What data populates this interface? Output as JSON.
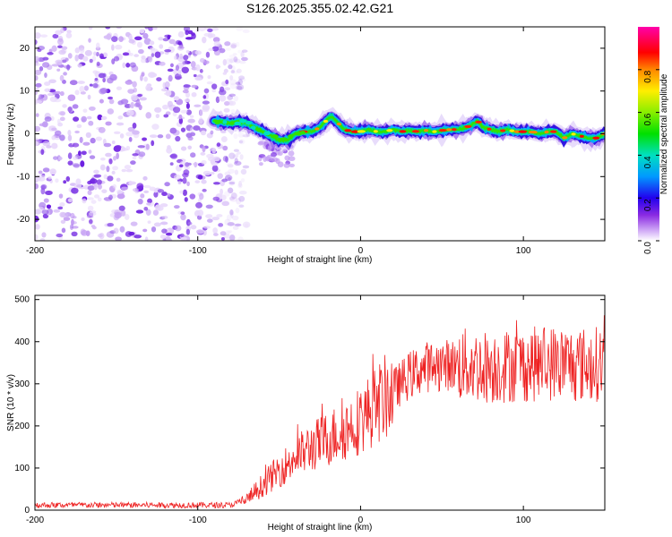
{
  "title": "S126.2025.355.02.42.G21",
  "chart_data": [
    {
      "type": "heatmap",
      "name": "spectrogram",
      "xlabel": "Height of straight line (km)",
      "ylabel": "Frequency (Hz)",
      "xlim": [
        -200,
        150
      ],
      "ylim": [
        -25,
        25
      ],
      "xticks": [
        -200,
        -100,
        0,
        100
      ],
      "yticks": [
        -20,
        -10,
        0,
        10,
        20
      ],
      "noise_region_x": [
        -200,
        -78
      ],
      "ridge": {
        "x": [
          -90,
          -80,
          -75,
          -70,
          -65,
          -60,
          -55,
          -50,
          -45,
          -40,
          -35,
          -30,
          -25,
          -20,
          -18,
          -15,
          -10,
          -5,
          0,
          5,
          10,
          15,
          20,
          25,
          30,
          35,
          40,
          45,
          50,
          55,
          60,
          65,
          70,
          72,
          75,
          80,
          85,
          90,
          95,
          100,
          105,
          110,
          115,
          120,
          125,
          130,
          135,
          140,
          145,
          150
        ],
        "y": [
          3,
          2.5,
          2.8,
          2.5,
          1.5,
          0.5,
          -0.5,
          -1.5,
          -1.5,
          0,
          0.5,
          0.5,
          1.5,
          3.5,
          4,
          3,
          1,
          0.5,
          0.5,
          1,
          0.5,
          0.5,
          1,
          0.5,
          0.8,
          0.5,
          0.8,
          0.5,
          0.8,
          1,
          1,
          1.5,
          2.5,
          3,
          1.5,
          1,
          0.5,
          1,
          0.5,
          0.5,
          0.5,
          0,
          0.5,
          0.5,
          -1,
          0,
          -0.5,
          -1,
          -1,
          0
        ]
      },
      "colorbar": {
        "label": "Normalized spectral amplitude",
        "ticks": [
          0.0,
          0.2,
          0.4,
          0.6,
          0.8
        ],
        "range": [
          0,
          1
        ]
      }
    },
    {
      "type": "line",
      "name": "snr",
      "xlabel": "Height of straight line (km)",
      "ylabel": "SNR (10 * v/v)",
      "xlim": [
        -200,
        150
      ],
      "ylim": [
        0,
        510
      ],
      "xticks": [
        -200,
        -100,
        0,
        100
      ],
      "yticks": [
        0,
        100,
        200,
        300,
        400,
        500
      ],
      "color": "#ee2222",
      "trend": {
        "x": [
          -200,
          -150,
          -100,
          -80,
          -70,
          -60,
          -50,
          -40,
          -30,
          -20,
          -10,
          0,
          10,
          20,
          30,
          40,
          50,
          60,
          80,
          100,
          120,
          140,
          150
        ],
        "y": [
          12,
          12,
          12,
          12,
          25,
          60,
          95,
          125,
          150,
          170,
          190,
          215,
          250,
          285,
          320,
          340,
          345,
          345,
          340,
          345,
          350,
          345,
          350
        ]
      }
    }
  ],
  "colors": {
    "trace": "#ee2222"
  }
}
